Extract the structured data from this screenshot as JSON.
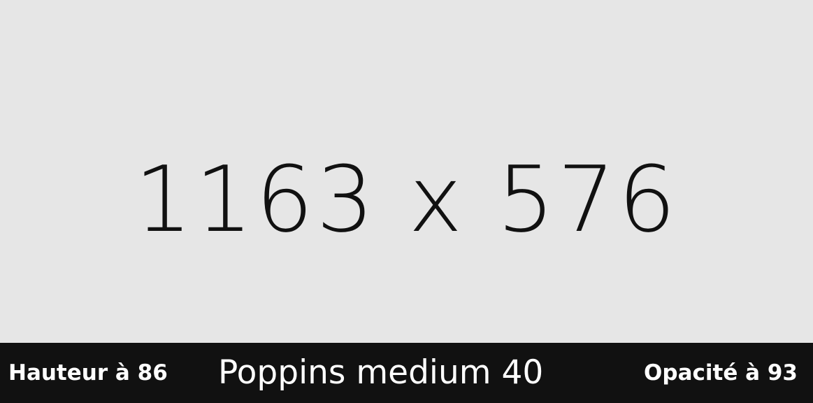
{
  "placeholder": {
    "dimensions_label": "1163 x 576",
    "background_color": "#e6e6e6",
    "text_color": "#111111"
  },
  "footer": {
    "height_label": "Hauteur à 86",
    "font_label": "Poppins medium 40",
    "opacity_label": "Opacité à 93",
    "background_color": "#111111",
    "text_color": "#ffffff"
  }
}
